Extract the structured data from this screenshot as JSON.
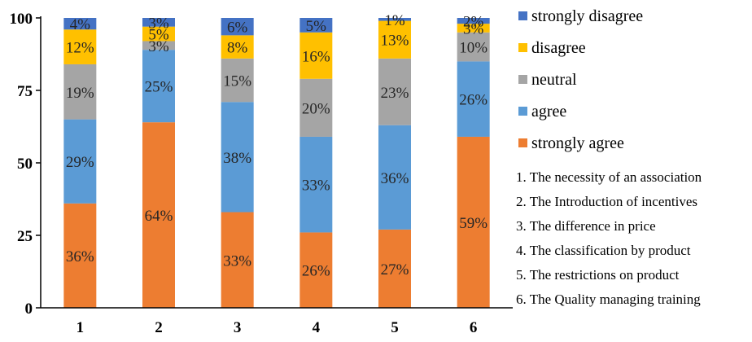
{
  "chart_data": {
    "type": "bar",
    "stacked": true,
    "title": "",
    "xlabel": "",
    "ylabel": "",
    "ylim": [
      0,
      100
    ],
    "yticks": [
      0,
      25,
      50,
      75,
      100
    ],
    "categories": [
      "1",
      "2",
      "3",
      "4",
      "5",
      "6"
    ],
    "series": [
      {
        "name": "strongly agree",
        "color": "#ED7D31",
        "values": [
          36,
          64,
          33,
          26,
          27,
          59
        ]
      },
      {
        "name": "agree",
        "color": "#5B9BD5",
        "values": [
          29,
          25,
          38,
          33,
          36,
          26
        ]
      },
      {
        "name": "neutral",
        "color": "#A5A5A5",
        "values": [
          19,
          3,
          15,
          20,
          23,
          10
        ]
      },
      {
        "name": "disagree",
        "color": "#FFC000",
        "values": [
          12,
          5,
          8,
          16,
          13,
          3
        ]
      },
      {
        "name": "strongly disagree",
        "color": "#4472C4",
        "values": [
          4,
          3,
          6,
          5,
          1,
          2
        ]
      }
    ],
    "legend": {
      "placement": "right",
      "order": [
        "strongly disagree",
        "disagree",
        "neutral",
        "agree",
        "strongly agree"
      ]
    },
    "notes": [
      "1. The necessity of an association",
      "2. The Introduction of incentives",
      "3. The difference in price",
      "4. The classification by product",
      "5. The restrictions on product",
      "6. The Quality managing training"
    ],
    "value_suffix": "%",
    "grid": false
  }
}
